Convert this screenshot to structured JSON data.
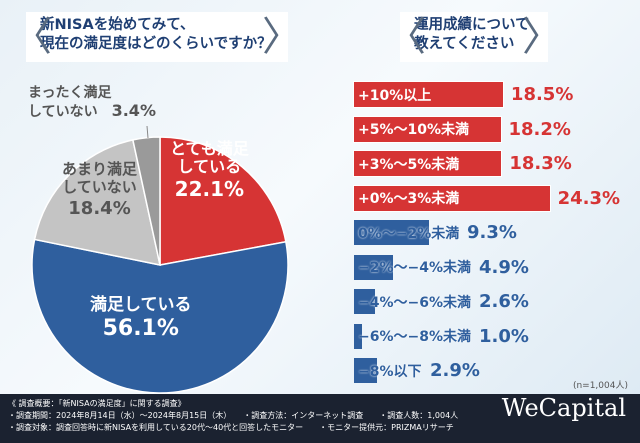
{
  "left": {
    "question": [
      "新NISAを始めてみて、",
      "現在の満足度はどのくらいですか？"
    ]
  },
  "right": {
    "question": [
      "運用成績について",
      "教えてください"
    ]
  },
  "chart_data": [
    {
      "type": "pie",
      "title": "新NISAを始めてみて、現在の満足度はどのくらいですか？",
      "slices": [
        {
          "label": "とても満足している",
          "lines": [
            "とても満足",
            "している"
          ],
          "value": 22.1,
          "display": "22.1%",
          "color": "#d63434"
        },
        {
          "label": "満足している",
          "lines": [
            "満足している"
          ],
          "value": 56.1,
          "display": "56.1%",
          "color": "#2f5f9e"
        },
        {
          "label": "あまり満足していない",
          "lines": [
            "あまり満足",
            "していない"
          ],
          "value": 18.4,
          "display": "18.4%",
          "color": "#c4c4c4"
        },
        {
          "label": "まったく満足していない",
          "lines": [
            "まったく満足",
            "していない"
          ],
          "value": 3.4,
          "display": "3.4%",
          "color": "#9a9a9a"
        }
      ]
    },
    {
      "type": "bar",
      "orientation": "horizontal",
      "title": "運用成績について教えてください",
      "categories": [
        "+10%以上",
        "+5%～10%未満",
        "+3%～5%未満",
        "+0%～3%未満",
        "0%～−2%未満",
        "−2%～−4%未満",
        "−4%～−6%未満",
        "−6%～−8%未満",
        "−8%以下"
      ],
      "values": [
        18.5,
        18.2,
        18.3,
        24.3,
        9.3,
        4.9,
        2.6,
        1.0,
        2.9
      ],
      "display": [
        "18.5%",
        "18.2%",
        "18.3%",
        "24.3%",
        "9.3%",
        "4.9%",
        "2.6%",
        "1.0%",
        "2.9%"
      ],
      "colors": [
        "#d63434",
        "#d63434",
        "#d63434",
        "#d63434",
        "#2f5f9e",
        "#2f5f9e",
        "#2f5f9e",
        "#2f5f9e",
        "#2f5f9e"
      ]
    }
  ],
  "sample": "(n=1,004人)",
  "footer": {
    "lines": [
      "《 調査概要：「新NISAの満足度」に関する調査》",
      "・調査期間：2024年8月14日（水）～2024年8月15日（木）　　・調査方法：インターネット調査　　・調査人数：1,004人",
      "・調査対象：調査回答時に新NISAを利用している20代～40代と回答したモニター　　・モニター提供元：PRIZMAリサーチ"
    ],
    "logo": "WeCapital"
  }
}
